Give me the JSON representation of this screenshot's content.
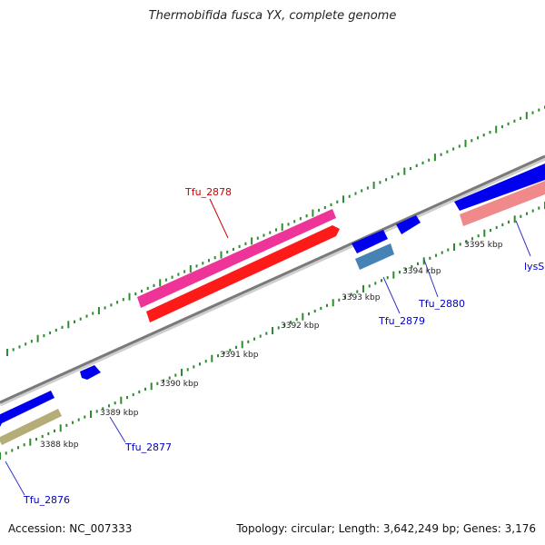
{
  "header": {
    "title": "Thermobifida fusca YX, complete genome"
  },
  "footer": {
    "accession": "Accession: NC_007333",
    "topology": "Topology: circular; Length: 3,642,249 bp; Genes: 3,176"
  },
  "ticks": [
    "3388 kbp",
    "3389 kbp",
    "3390 kbp",
    "3391 kbp",
    "3392 kbp",
    "3393 kbp",
    "3394 kbp",
    "3395 kbp"
  ],
  "genes": [
    {
      "label": "Tfu_2876",
      "color": "#0000ff"
    },
    {
      "label": "Tfu_2877",
      "color": "#0000ff"
    },
    {
      "label": "Tfu_2878",
      "color": "#cc0000"
    },
    {
      "label": "Tfu_2879",
      "color": "#0000ff"
    },
    {
      "label": "Tfu_2880",
      "color": "#0000ff"
    },
    {
      "label": "lysS",
      "color": "#0000ff"
    }
  ],
  "colors": {
    "backbone": "#8c8c8c",
    "tick": "#2e8b2e",
    "cds_blue": "#0000ee",
    "cds_red": "#ff1a1a",
    "cds_pink": "#ee3399",
    "cds_salmon": "#f08a8a",
    "cds_olive": "#b5ad78",
    "cds_steel": "#4682b4"
  }
}
